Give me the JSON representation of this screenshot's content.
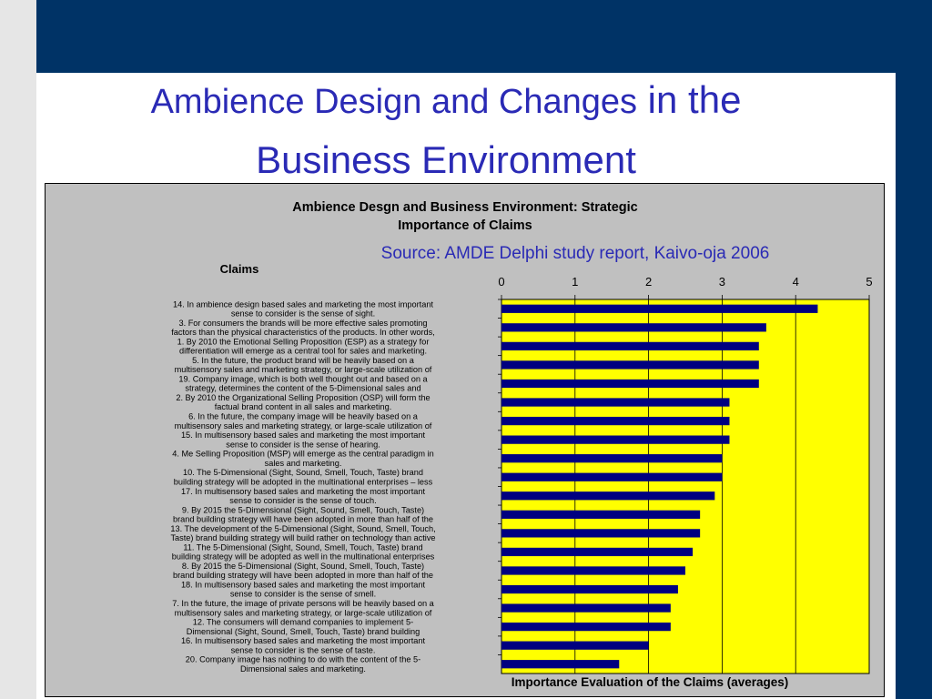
{
  "slide": {
    "title_part1": "Ambience Design and Changes",
    "title_part2": " in the",
    "title_line2": "Business Environment"
  },
  "chart_data": {
    "type": "bar",
    "orientation": "horizontal",
    "title_line1": "Ambience Desgn and Business Environment: Strategic",
    "title_line2": "Importance of Claims",
    "source": "Source: AMDE Delphi study report, Kaivo-oja 2006",
    "ylabel": "Claims",
    "xlabel": "Importance Evaluation of the Claims (averages)",
    "xlim": [
      0,
      5
    ],
    "xticks": [
      "0",
      "1",
      "2",
      "3",
      "4",
      "5"
    ],
    "grid": true,
    "bar_color": "#000080",
    "plot_background": "#ffff00",
    "categories": [
      [
        "14. In ambience design based sales and marketing the most important",
        "sense to consider is the sense of sight."
      ],
      [
        "3. For consumers the brands will be more effective sales promoting",
        "factors than the physical characteristics of the products. In other words,"
      ],
      [
        "1. By 2010 the Emotional Selling Proposition (ESP) as a strategy for",
        "differentiation will emerge as a central tool for sales and marketing."
      ],
      [
        "5. In the future, the product brand will be heavily based on a",
        "multisensory sales and marketing strategy, or large-scale utilization of"
      ],
      [
        "19. Company image, which is both well thought out and based on a",
        "strategy, determines the content of the 5-Dimensional sales and"
      ],
      [
        "2. By 2010 the Organizational Selling Proposition (OSP) will form the",
        "factual brand content in all sales and marketing."
      ],
      [
        "6. In the future, the company image will be heavily based on a",
        "multisensory sales and marketing strategy, or large-scale utilization of"
      ],
      [
        "15. In multisensory based sales and marketing the most important",
        "sense to consider is the sense of hearing."
      ],
      [
        "4. Me Selling Proposition (MSP) will emerge as the central paradigm in",
        "sales and marketing."
      ],
      [
        "10. The 5-Dimensional (Sight, Sound, Smell, Touch, Taste) brand",
        "building strategy will be adopted in the multinational enterprises – less"
      ],
      [
        "17. In multisensory based sales and marketing the most important",
        "sense to consider is the sense of touch."
      ],
      [
        "9. By 2015 the 5-Dimensional (Sight, Sound, Smell, Touch, Taste)",
        "brand building strategy will have been adopted in more than half of the"
      ],
      [
        "13. The development of the 5-Dimensional (Sight, Sound, Smell, Touch,",
        "Taste) brand building strategy will build rather on technology than active"
      ],
      [
        "11.  The 5-Dimensional (Sight, Sound, Smell, Touch, Taste) brand",
        "building strategy will be adopted as well in the multinational enterprises"
      ],
      [
        "8. By 2015 the 5-Dimensional (Sight, Sound, Smell, Touch, Taste)",
        "brand building strategy will have been adopted in more than half of the"
      ],
      [
        "18. In multisensory based sales and marketing the most important",
        "sense to consider is the sense of smell."
      ],
      [
        "7. In the future, the image of private persons will be heavily based on a",
        "multisensory sales and marketing strategy, or large-scale utilization of"
      ],
      [
        "12. The consumers will demand companies to implement 5-",
        "Dimensional (Sight, Sound, Smell, Touch, Taste) brand building"
      ],
      [
        "16. In multisensory based sales and marketing the most important",
        "sense to consider is the sense of taste."
      ],
      [
        "20. Company image has nothing to do with the content of the 5-",
        "Dimensional sales and marketing."
      ]
    ],
    "values": [
      4.3,
      3.6,
      3.5,
      3.5,
      3.5,
      3.1,
      3.1,
      3.1,
      3.0,
      3.0,
      2.9,
      2.7,
      2.7,
      2.6,
      2.5,
      2.4,
      2.3,
      2.3,
      2.0,
      1.6
    ]
  }
}
